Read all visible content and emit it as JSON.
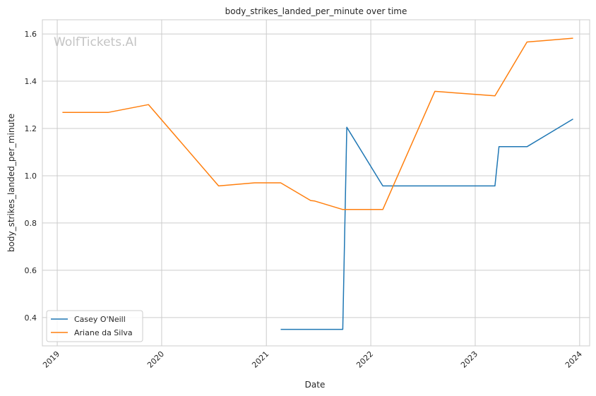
{
  "chart_data": {
    "type": "line",
    "title": "body_strikes_landed_per_minute over time",
    "xlabel": "Date",
    "ylabel": "body_strikes_landed_per_minute",
    "watermark": "WolfTickets.AI",
    "x_ticks": [
      "2019",
      "2020",
      "2021",
      "2022",
      "2023",
      "2024"
    ],
    "y_ticks": [
      "0.4",
      "0.6",
      "0.8",
      "1.0",
      "1.2",
      "1.4",
      "1.6"
    ],
    "xlim": [
      "2018-11-10",
      "2024-02-05"
    ],
    "ylim": [
      0.28,
      1.66
    ],
    "grid": true,
    "legend_position": "lower-left",
    "series": [
      {
        "name": "Casey O'Neill",
        "color": "#1f77b4",
        "points": [
          [
            "2021-02-20",
            0.35
          ],
          [
            "2021-09-25",
            0.35
          ],
          [
            "2021-10-09",
            1.205
          ],
          [
            "2022-02-12",
            0.957
          ],
          [
            "2023-03-11",
            0.957
          ],
          [
            "2023-03-25",
            1.123
          ],
          [
            "2023-07-01",
            1.123
          ],
          [
            "2023-12-09",
            1.24
          ]
        ]
      },
      {
        "name": "Ariane da Silva",
        "color": "#ff7f0e",
        "points": [
          [
            "2019-01-19",
            1.268
          ],
          [
            "2019-06-29",
            1.268
          ],
          [
            "2019-11-16",
            1.301
          ],
          [
            "2020-07-18",
            0.957
          ],
          [
            "2020-11-21",
            0.97
          ],
          [
            "2021-02-20",
            0.97
          ],
          [
            "2021-06-05",
            0.895
          ],
          [
            "2021-06-19",
            0.893
          ],
          [
            "2021-09-25",
            0.857
          ],
          [
            "2022-02-12",
            0.857
          ],
          [
            "2022-08-13",
            1.357
          ],
          [
            "2023-03-11",
            1.338
          ],
          [
            "2023-07-01",
            1.566
          ],
          [
            "2023-12-09",
            1.582
          ]
        ]
      }
    ]
  }
}
